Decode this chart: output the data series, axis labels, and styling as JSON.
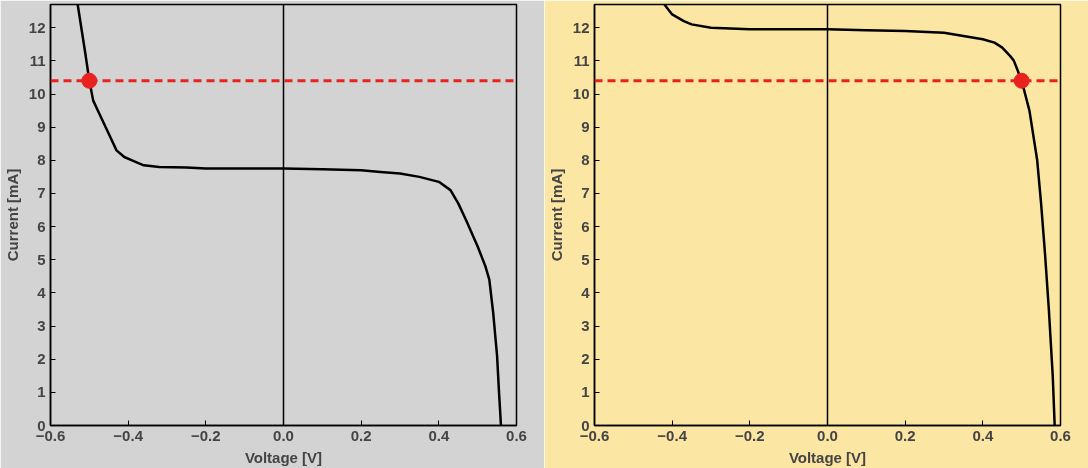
{
  "chart_data": [
    {
      "type": "line",
      "xlabel": "Voltage [V]",
      "ylabel": "Current [mA]",
      "xlim": [
        -0.6,
        0.6
      ],
      "ylim": [
        0,
        12.7
      ],
      "xticks": [
        -0.6,
        -0.4,
        -0.2,
        {
          "value": 0,
          "label": "0.0"
        },
        0.2,
        0.4,
        0.6
      ],
      "yticks": [
        0,
        1,
        2,
        3,
        4,
        5,
        6,
        7,
        8,
        9,
        10,
        11,
        12
      ],
      "grid": false,
      "series": [
        {
          "color": "#000000",
          "x": [
            -0.53,
            -0.51,
            -0.5,
            -0.49,
            -0.47,
            -0.45,
            -0.43,
            -0.41,
            -0.39,
            -0.36,
            -0.32,
            -0.25,
            -0.2,
            -0.1,
            0,
            0.1,
            0.2,
            0.25,
            0.3,
            0.35,
            0.4,
            0.43,
            0.45,
            0.47,
            0.5,
            0.52,
            0.53,
            0.54,
            0.55,
            0.555,
            0.56
          ],
          "values": [
            12.7,
            11.2,
            10.4,
            9.8,
            9.3,
            8.8,
            8.3,
            8.1,
            8.0,
            7.85,
            7.8,
            7.78,
            7.75,
            7.75,
            7.75,
            7.73,
            7.7,
            7.65,
            7.6,
            7.5,
            7.35,
            7.1,
            6.7,
            6.2,
            5.4,
            4.8,
            4.4,
            3.4,
            2.1,
            1.0,
            0
          ]
        },
        {
          "type": "scatter",
          "color": "#e8231f",
          "marker": "circle",
          "x": [
            -0.5
          ],
          "values": [
            10.4
          ]
        }
      ],
      "ref_lines": [
        {
          "axis": "x",
          "value": 0,
          "color": "#000000",
          "line_style": "solid"
        },
        {
          "axis": "y",
          "value": 10.4,
          "color": "#e8231f",
          "line_style": "dashed"
        }
      ]
    },
    {
      "type": "line",
      "xlabel": "Voltage [V]",
      "ylabel": "Current [mA]",
      "xlim": [
        -0.6,
        0.6
      ],
      "ylim": [
        0,
        12.7
      ],
      "xticks": [
        -0.6,
        -0.4,
        -0.2,
        {
          "value": 0,
          "label": "0.0"
        },
        0.2,
        0.4,
        0.6
      ],
      "yticks": [
        0,
        1,
        2,
        3,
        4,
        5,
        6,
        7,
        8,
        9,
        10,
        11,
        12
      ],
      "grid": false,
      "series": [
        {
          "color": "#000000",
          "x": [
            -0.42,
            -0.4,
            -0.37,
            -0.35,
            -0.3,
            -0.2,
            -0.1,
            0,
            0.1,
            0.2,
            0.3,
            0.35,
            0.4,
            0.43,
            0.45,
            0.47,
            0.48,
            0.5,
            0.52,
            0.54,
            0.55,
            0.56,
            0.57,
            0.58,
            0.585
          ],
          "values": [
            12.7,
            12.4,
            12.2,
            12.1,
            12.0,
            11.95,
            11.95,
            11.95,
            11.92,
            11.9,
            11.85,
            11.75,
            11.65,
            11.55,
            11.4,
            11.15,
            11.0,
            10.4,
            9.5,
            8.0,
            6.7,
            5.2,
            3.5,
            1.5,
            0
          ]
        },
        {
          "type": "scatter",
          "color": "#e8231f",
          "marker": "circle",
          "x": [
            0.5
          ],
          "values": [
            10.4
          ]
        }
      ],
      "ref_lines": [
        {
          "axis": "x",
          "value": 0,
          "color": "#000000",
          "line_style": "solid"
        },
        {
          "axis": "y",
          "value": 10.4,
          "color": "#e8231f",
          "line_style": "dashed"
        }
      ]
    }
  ]
}
